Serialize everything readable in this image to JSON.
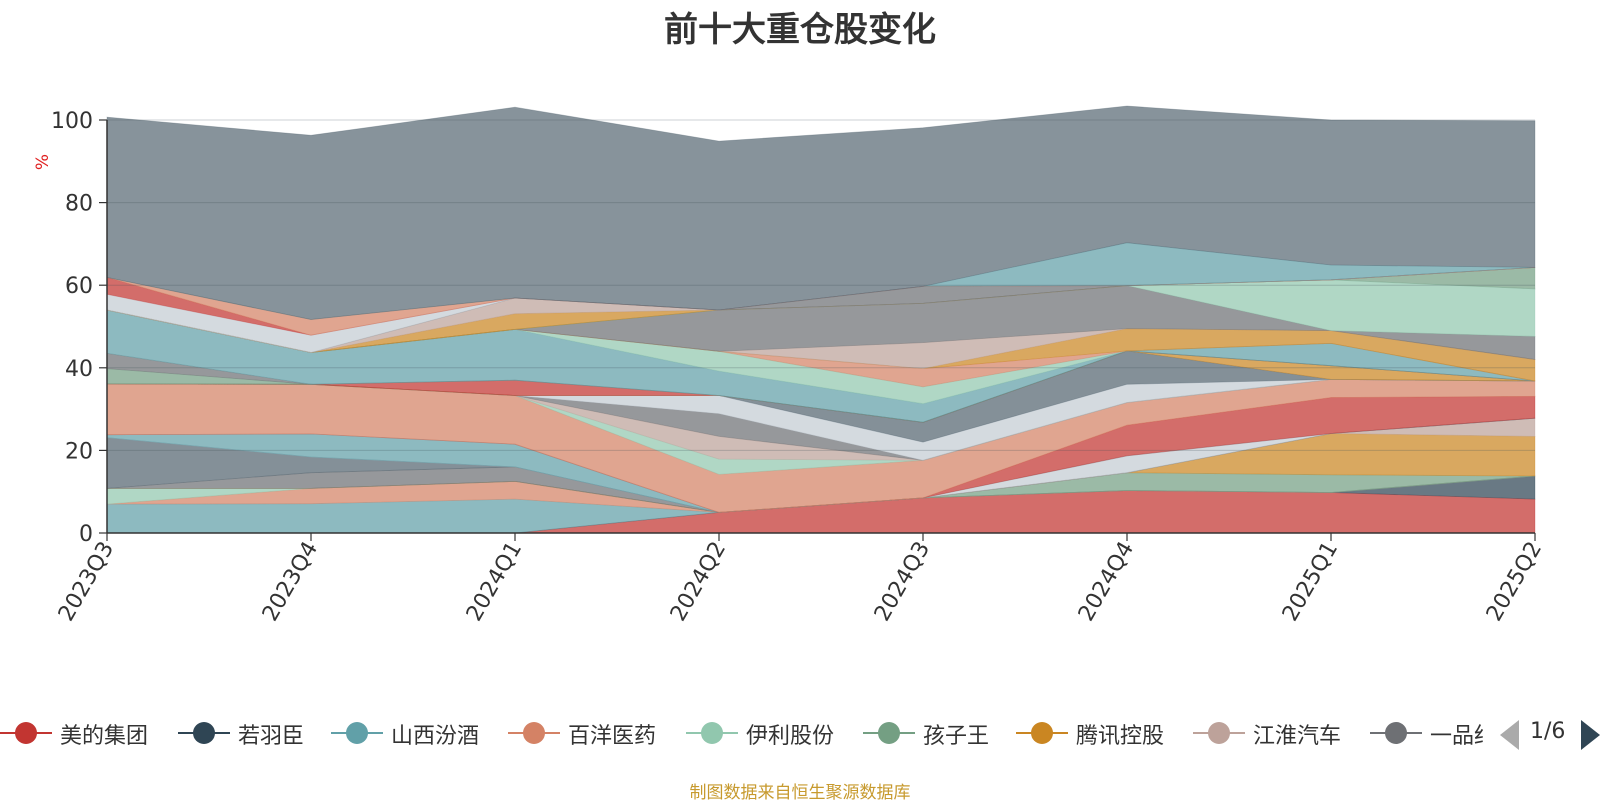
{
  "chart_data": {
    "type": "area",
    "stacked": true,
    "title": "前十大重仓股变化",
    "ylabel": "%",
    "xlabel": "",
    "ylim": [
      0,
      100
    ],
    "yticks": [
      0,
      20,
      40,
      60,
      80,
      100
    ],
    "grid": true,
    "legend_position": "bottom",
    "categories": [
      "2023Q3",
      "2023Q4",
      "2024Q1",
      "2024Q2",
      "2024Q3",
      "2024Q4",
      "2025Q1",
      "2025Q2"
    ],
    "series": [
      {
        "name": "美的集团",
        "color": "#c23531",
        "values": [
          0,
          0,
          0,
          5,
          8.5,
          10.3,
          9.8,
          8.2
        ]
      },
      {
        "name": "若羽臣",
        "color": "#2f4554",
        "values": [
          0,
          0,
          0,
          0,
          0,
          0,
          0,
          5.6
        ]
      },
      {
        "name": "山西汾酒",
        "color": "#61a0a8",
        "values": [
          7,
          7.1,
          8.2,
          0,
          0,
          0,
          0,
          0
        ]
      },
      {
        "name": "百洋医药",
        "color": "#d48265",
        "values": [
          0,
          3.7,
          4.3,
          0,
          0,
          0,
          0,
          0
        ]
      },
      {
        "name": "伊利股份",
        "color": "#91c7ae",
        "values": [
          3.8,
          0,
          0,
          0,
          0,
          0,
          0,
          0
        ]
      },
      {
        "name": "孩子王",
        "color": "#749f83",
        "values": [
          0,
          0,
          0,
          0,
          0,
          4.3,
          4.3,
          0
        ]
      },
      {
        "name": "腾讯控股",
        "color": "#ca8622",
        "values": [
          0,
          0,
          0,
          0,
          0,
          0,
          10,
          9.6
        ]
      },
      {
        "name": "江淮汽车",
        "color": "#bda29a",
        "values": [
          0,
          0,
          0,
          0,
          0,
          0,
          0,
          4.4
        ]
      },
      {
        "name": "一品红",
        "color": "#6e7074",
        "values": [
          0,
          3.8,
          3.5,
          0,
          0,
          0,
          0,
          0
        ]
      }
    ],
    "other_layers": [
      {
        "color": "#546570",
        "values": [
          12.3,
          3.8,
          0,
          0,
          0,
          0,
          0,
          0
        ]
      },
      {
        "color": "#c4ccd3",
        "values": [
          0,
          0,
          0,
          0,
          0,
          4.1,
          0,
          0
        ]
      },
      {
        "color": "#61a0a8",
        "values": [
          0.7,
          5.6,
          5.5,
          0,
          0,
          0,
          0,
          0
        ]
      },
      {
        "color": "#c23531",
        "values": [
          0,
          0,
          0,
          0,
          0,
          7.4,
          8.7,
          5.3
        ]
      },
      {
        "color": "#d48265",
        "values": [
          12.3,
          12,
          11.8,
          9.2,
          9.1,
          5.5,
          4.4,
          3.7
        ]
      },
      {
        "color": "#91c7ae",
        "values": [
          0,
          0,
          0,
          3.7,
          0,
          0,
          0,
          0
        ]
      },
      {
        "color": "#bda29a",
        "values": [
          0,
          0,
          0,
          5.5,
          0,
          0,
          0,
          0
        ]
      },
      {
        "color": "#6e7074",
        "values": [
          0,
          0,
          0,
          5.5,
          0,
          0,
          0,
          0
        ]
      },
      {
        "color": "#c4ccd3",
        "values": [
          0,
          0,
          0,
          4.4,
          4.4,
          4.4,
          0,
          0
        ]
      },
      {
        "color": "#546570",
        "values": [
          0,
          0,
          0,
          0,
          4.8,
          8.1,
          0,
          0
        ]
      },
      {
        "color": "#ca8622",
        "values": [
          0,
          0,
          0,
          0,
          0,
          0,
          3.3,
          0
        ]
      },
      {
        "color": "#c23531",
        "values": [
          0,
          0,
          3.7,
          0,
          0,
          0,
          0,
          0
        ]
      },
      {
        "color": "#749f83",
        "values": [
          3.7,
          0,
          0,
          0,
          0,
          0,
          0,
          0
        ]
      },
      {
        "color": "#6e7074",
        "values": [
          3.7,
          0,
          0,
          0,
          0,
          0,
          0,
          0
        ]
      },
      {
        "color": "#61a0a8",
        "values": [
          10.5,
          7.7,
          12.3,
          5.9,
          4.5,
          0,
          5.4,
          0
        ]
      },
      {
        "color": "#91c7ae",
        "values": [
          0,
          0,
          0,
          4.8,
          4.1,
          0,
          0,
          0
        ]
      },
      {
        "color": "#d48265",
        "values": [
          0,
          0,
          0,
          0,
          4.4,
          0,
          0,
          0
        ]
      },
      {
        "color": "#ca8622",
        "values": [
          0,
          0,
          0,
          0,
          0,
          5.4,
          3.1,
          5.2
        ]
      },
      {
        "color": "#bda29a",
        "values": [
          0,
          0,
          0,
          0,
          6.3,
          0,
          0,
          0
        ]
      },
      {
        "color": "#6e7074",
        "values": [
          0,
          0,
          0,
          10,
          9.5,
          10.4,
          0,
          5.6
        ]
      },
      {
        "color": "#91c7ae",
        "values": [
          0,
          0,
          0,
          0,
          0,
          0,
          12.3,
          11.5
        ]
      },
      {
        "color": "#749f83",
        "values": [
          0,
          0,
          0,
          0,
          0,
          0,
          0,
          5.2
        ]
      },
      {
        "color": "#ca8622",
        "values": [
          0,
          0,
          3.8,
          0,
          0,
          0,
          0,
          0
        ]
      },
      {
        "color": "#bda29a",
        "values": [
          0,
          0,
          3.8,
          0,
          0,
          0,
          0,
          0
        ]
      },
      {
        "color": "#6e7074",
        "values": [
          0,
          0,
          0,
          0,
          4.1,
          0,
          0,
          0
        ]
      },
      {
        "color": "#c4ccd3",
        "values": [
          3.8,
          4.2,
          0,
          0,
          0,
          0,
          0,
          0
        ]
      },
      {
        "color": "#c23531",
        "values": [
          4.1,
          0,
          0,
          0,
          0,
          0,
          0,
          0
        ]
      },
      {
        "color": "#d48265",
        "values": [
          0,
          3.8,
          0,
          0,
          0,
          0,
          0,
          0
        ]
      },
      {
        "color": "#61a0a8",
        "values": [
          0,
          0,
          0,
          0,
          0,
          10.4,
          3.6,
          0
        ]
      },
      {
        "color": "#546570",
        "values": [
          38.8,
          44.6,
          46.2,
          40.9,
          38.4,
          33.1,
          35.1,
          35.5
        ]
      }
    ]
  },
  "legend": {
    "pager_text": "1/6"
  },
  "source_note": "制图数据来自恒生聚源数据库"
}
